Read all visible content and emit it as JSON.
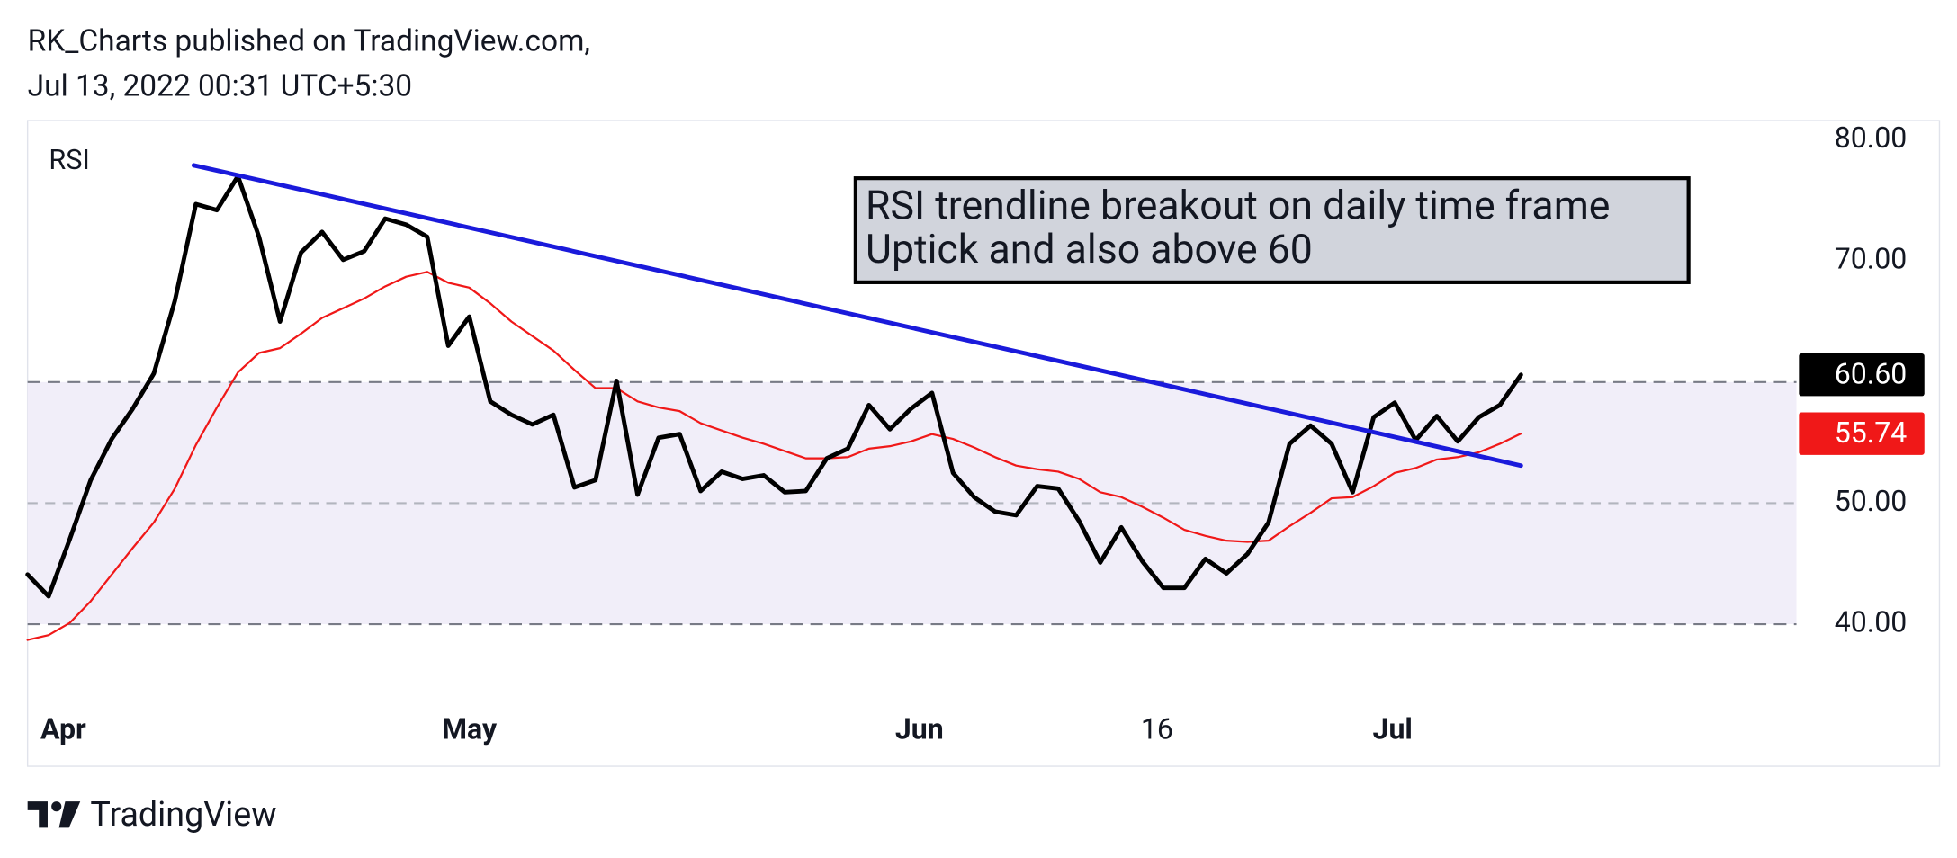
{
  "header": {
    "line1": "RK_Charts published on TradingView.com,",
    "line2": "Jul 13, 2022 00:31 UTC+5:30"
  },
  "footer": {
    "brand": "TradingView"
  },
  "chart_data": {
    "type": "line",
    "title": "RSI",
    "annotation": [
      "RSI trendline breakout on daily time frame",
      "Uptick and also above 60"
    ],
    "x": [
      0,
      1,
      2,
      3,
      4,
      5,
      6,
      7,
      8,
      9,
      10,
      11,
      12,
      13,
      14,
      15,
      16,
      17,
      18,
      19,
      20,
      21,
      22,
      23,
      24,
      25,
      26,
      27,
      28,
      29,
      30,
      31,
      32,
      33,
      34,
      35,
      36,
      37,
      38,
      39,
      40,
      41,
      42,
      43,
      44,
      45,
      46,
      47,
      48,
      49,
      50,
      51,
      52,
      53,
      54,
      55,
      56,
      57,
      58,
      59,
      60,
      61,
      62,
      63,
      64,
      65,
      66,
      67,
      68,
      69,
      70,
      71
    ],
    "series": [
      {
        "color": "#000000",
        "width": 3.5,
        "last_value_label": "60.60",
        "values": [
          44.1,
          42.3,
          47.0,
          51.9,
          55.3,
          57.8,
          60.7,
          66.7,
          74.7,
          74.2,
          77.0,
          72.0,
          65.0,
          70.7,
          72.4,
          70.1,
          70.8,
          73.5,
          73.0,
          72.0,
          63.0,
          65.4,
          58.4,
          57.3,
          56.5,
          57.3,
          51.3,
          51.9,
          60.1,
          50.7,
          55.4,
          55.7,
          51.0,
          52.6,
          52.0,
          52.3,
          50.9,
          51.0,
          53.7,
          54.5,
          58.1,
          56.1,
          57.8,
          59.1,
          52.5,
          50.5,
          49.3,
          49.0,
          51.4,
          51.2,
          48.5,
          45.1,
          48.0,
          45.2,
          43.0,
          43.0,
          45.4,
          44.2,
          45.8,
          48.4,
          54.9,
          56.4,
          54.9,
          50.9,
          57.1,
          58.3,
          55.2,
          57.2,
          55.1,
          57.1,
          58.1,
          60.6
        ]
      },
      {
        "color": "#f01818",
        "width": 1.6,
        "last_value_label": "55.74",
        "values": [
          38.7,
          39.1,
          40.1,
          41.9,
          44.1,
          46.3,
          48.4,
          51.2,
          54.8,
          57.9,
          60.8,
          62.4,
          62.8,
          64.0,
          65.3,
          66.1,
          66.9,
          67.9,
          68.7,
          69.1,
          68.2,
          67.8,
          66.5,
          65.0,
          63.8,
          62.6,
          61.0,
          59.5,
          59.5,
          58.4,
          57.9,
          57.6,
          56.6,
          56.0,
          55.4,
          54.9,
          54.3,
          53.7,
          53.7,
          53.8,
          54.5,
          54.7,
          55.1,
          55.7,
          55.3,
          54.6,
          53.8,
          53.1,
          52.8,
          52.6,
          52.0,
          50.9,
          50.5,
          49.7,
          48.8,
          47.8,
          47.3,
          46.9,
          46.8,
          46.9,
          48.1,
          49.2,
          50.4,
          50.5,
          51.4,
          52.5,
          52.9,
          53.6,
          53.8,
          54.2,
          54.9,
          55.74
        ]
      }
    ],
    "trendline": {
      "color": "#1a1adb",
      "x": [
        7.9,
        71
      ],
      "values": [
        77.9,
        53.1
      ]
    },
    "bands": {
      "upper": 60,
      "middle": 50,
      "lower": 40,
      "fill": "#f1eef9"
    },
    "xlim": [
      0,
      84.1
    ],
    "ylim": [
      35.1,
      81.6
    ],
    "xticks": [
      {
        "value": 1.7,
        "label": "Apr"
      },
      {
        "value": 21.0,
        "label": "May"
      },
      {
        "value": 42.4,
        "label": "Jun"
      },
      {
        "value": 53.7,
        "label": "16"
      },
      {
        "value": 64.9,
        "label": "Jul"
      }
    ],
    "yticks": [
      {
        "value": 40,
        "label": "40.00"
      },
      {
        "value": 50,
        "label": "50.00"
      },
      {
        "value": 70,
        "label": "70.00"
      },
      {
        "value": 80,
        "label": "80.00"
      }
    ]
  }
}
